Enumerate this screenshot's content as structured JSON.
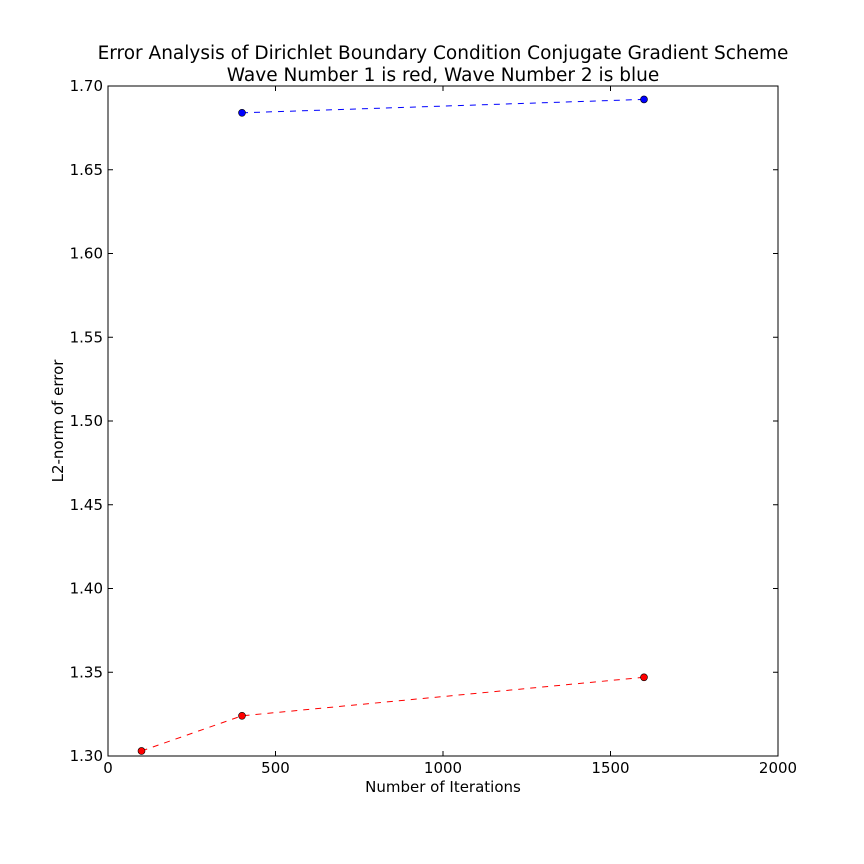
{
  "chart_data": {
    "type": "line",
    "title": "Error Analysis of Dirichlet Boundary Condition Conjugate Gradient Scheme",
    "subtitle": "Wave Number 1 is red, Wave Number 2 is blue",
    "xlabel": "Number of Iterations",
    "ylabel": "L2-norm of error",
    "xlim": [
      0,
      2000
    ],
    "ylim": [
      1.3,
      1.7
    ],
    "x_ticks": [
      "0",
      "500",
      "1000",
      "1500",
      "2000"
    ],
    "y_ticks": [
      "1.30",
      "1.35",
      "1.40",
      "1.45",
      "1.50",
      "1.55",
      "1.60",
      "1.65",
      "1.70"
    ],
    "grid": false,
    "series": [
      {
        "color": "#ff0000",
        "line_style": "dashed",
        "marker": "circle",
        "x": [
          100,
          400,
          1600
        ],
        "y": [
          1.303,
          1.324,
          1.347
        ]
      },
      {
        "color": "#0000ff",
        "line_style": "dashed",
        "marker": "circle",
        "x": [
          400,
          1600
        ],
        "y": [
          1.684,
          1.692
        ]
      }
    ]
  }
}
